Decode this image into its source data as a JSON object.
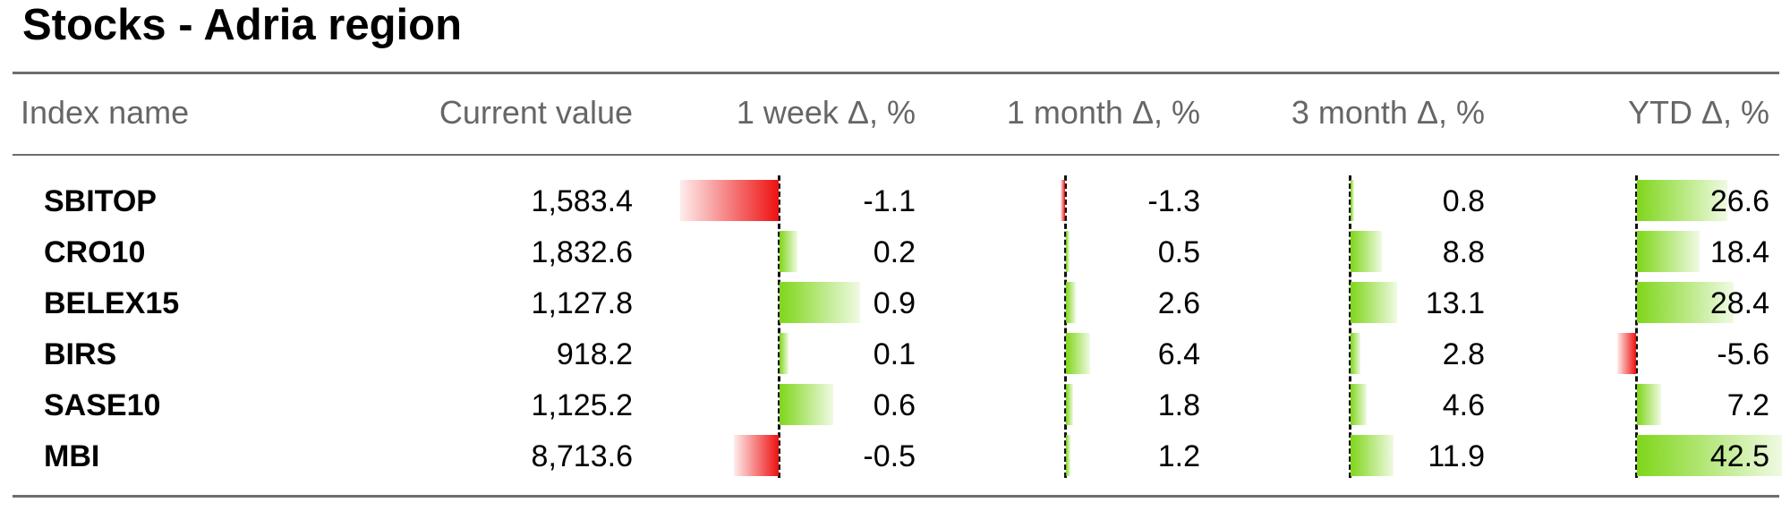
{
  "title": "Stocks - Adria region",
  "headers": {
    "name": "Index name",
    "value": "Current value",
    "week": "1 week Δ, %",
    "month": "1 month Δ, %",
    "month3": "3 month Δ, %",
    "ytd": "YTD Δ, %"
  },
  "rows": [
    {
      "name": "SBITOP",
      "value": "1,583.4",
      "week": "-1.1",
      "month": "-1.3",
      "month3": "0.8",
      "ytd": "26.6"
    },
    {
      "name": "CRO10",
      "value": "1,832.6",
      "week": "0.2",
      "month": "0.5",
      "month3": "8.8",
      "ytd": "18.4"
    },
    {
      "name": "BELEX15",
      "value": "1,127.8",
      "week": "0.9",
      "month": "2.6",
      "month3": "13.1",
      "ytd": "28.4"
    },
    {
      "name": "BIRS",
      "value": "918.2",
      "week": "0.1",
      "month": "6.4",
      "month3": "2.8",
      "ytd": "-5.6"
    },
    {
      "name": "SASE10",
      "value": "1,125.2",
      "week": "0.6",
      "month": "1.8",
      "month3": "4.6",
      "ytd": "7.2"
    },
    {
      "name": "MBI",
      "value": "8,713.6",
      "week": "-0.5",
      "month": "1.2",
      "month3": "11.9",
      "ytd": "42.5"
    }
  ],
  "colors": {
    "positive": "#7fd61a",
    "negative": "#ee1111",
    "axis": "#111111",
    "rule": "#6e6e6e",
    "header_text": "#666666"
  },
  "chart_data": {
    "type": "table",
    "title": "Stocks - Adria region",
    "columns": [
      "Index name",
      "Current value",
      "1 week Δ, %",
      "1 month Δ, %",
      "3 month Δ, %",
      "YTD Δ, %"
    ],
    "rows": [
      [
        "SBITOP",
        1583.4,
        -1.1,
        -1.3,
        0.8,
        26.6
      ],
      [
        "CRO10",
        1832.6,
        0.2,
        0.5,
        8.8,
        18.4
      ],
      [
        "BELEX15",
        1127.8,
        0.9,
        2.6,
        13.1,
        28.4
      ],
      [
        "BIRS",
        918.2,
        0.1,
        6.4,
        2.8,
        -5.6
      ],
      [
        "SASE10",
        1125.2,
        0.6,
        1.8,
        4.6,
        7.2
      ],
      [
        "MBI",
        8713.6,
        -0.5,
        1.2,
        11.9,
        42.5
      ]
    ],
    "bar_columns": [
      "1 week Δ, %",
      "1 month Δ, %",
      "3 month Δ, %",
      "YTD Δ, %"
    ]
  }
}
